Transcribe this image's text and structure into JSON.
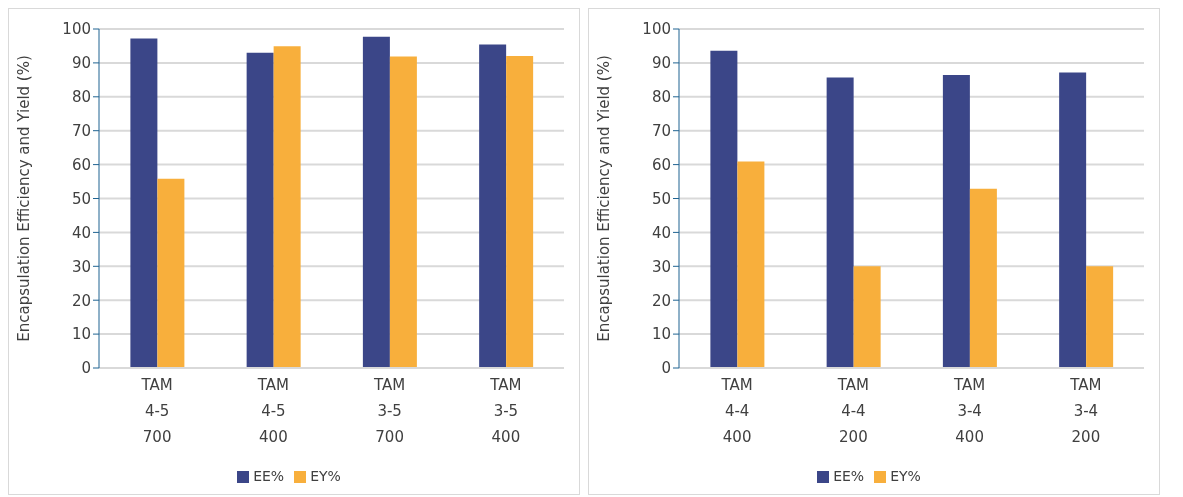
{
  "chart_data": [
    {
      "type": "bar",
      "ylabel": "Encapsulation Efficiency and Yield (%)",
      "categories": [
        "TAM\n4-5\n700",
        "TAM\n4-5\n400",
        "TAM\n3-5\n700",
        "TAM\n3-5\n400"
      ],
      "series": [
        {
          "name": "EE%",
          "color": "#3b4688",
          "values": [
            97.2,
            93,
            97.7,
            95.4
          ]
        },
        {
          "name": "EY%",
          "color": "#f8af3c",
          "values": [
            55.8,
            94.9,
            91.9,
            92
          ]
        }
      ],
      "ylim": [
        0,
        100
      ],
      "yticks": [
        0,
        10,
        20,
        30,
        40,
        50,
        60,
        70,
        80,
        90,
        100
      ],
      "grid": "y",
      "legend": "bottom"
    },
    {
      "type": "bar",
      "ylabel": "Encapsulation Efficiency and Yield (%)",
      "categories": [
        "TAM\n4-4\n400",
        "TAM\n4-4\n200",
        "TAM\n3-4\n400",
        "TAM\n3-4\n200"
      ],
      "series": [
        {
          "name": "EE%",
          "color": "#3b4688",
          "values": [
            93.6,
            85.7,
            86.4,
            87.2
          ]
        },
        {
          "name": "EY%",
          "color": "#f8af3c",
          "values": [
            60.9,
            30,
            52.9,
            30
          ]
        }
      ],
      "ylim": [
        0,
        100
      ],
      "yticks": [
        0,
        10,
        20,
        30,
        40,
        50,
        60,
        70,
        80,
        90,
        100
      ],
      "grid": "y",
      "legend": "bottom"
    }
  ]
}
